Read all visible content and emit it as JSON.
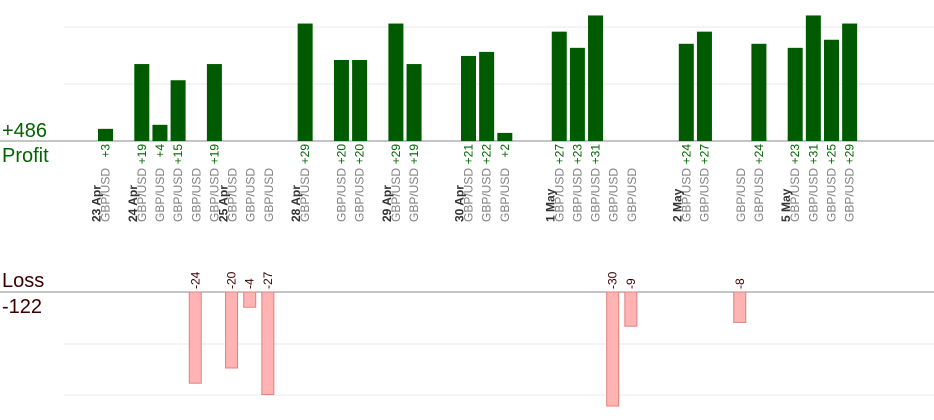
{
  "summary": {
    "profit_total": "+486",
    "profit_label": "Profit",
    "loss_label": "Loss",
    "loss_total": "-122"
  },
  "colors": {
    "profit_bar": "#005a00",
    "profit_text": "#006400",
    "loss_bar": "#ffb3b3",
    "loss_bar_border": "#e08080",
    "loss_text": "#3a0000",
    "grid": "#e8e8e8",
    "axis": "#888888"
  },
  "chart_data": {
    "type": "bar",
    "grid": true,
    "categories_label": "GBP/USD",
    "dates": [
      {
        "label": "23 Apr",
        "slot": 0
      },
      {
        "label": "24 Apr",
        "slot": 2
      },
      {
        "label": "25 Apr",
        "slot": 7
      },
      {
        "label": "28 Apr",
        "slot": 11
      },
      {
        "label": "29 Apr",
        "slot": 16
      },
      {
        "label": "30 Apr",
        "slot": 20
      },
      {
        "label": "1 May",
        "slot": 25
      },
      {
        "label": "2 May",
        "slot": 32
      },
      {
        "label": "5 May",
        "slot": 38
      }
    ],
    "profit_max": 42,
    "loss_max": 30,
    "trades": [
      {
        "slot": 0,
        "value": 3,
        "label": "+3"
      },
      {
        "slot": 2,
        "value": 19,
        "label": "+19"
      },
      {
        "slot": 3,
        "value": 4,
        "label": "+4"
      },
      {
        "slot": 4,
        "value": 15,
        "label": "+15"
      },
      {
        "slot": 5,
        "value": -24,
        "label": "-24"
      },
      {
        "slot": 6,
        "value": 19,
        "label": "+19"
      },
      {
        "slot": 7,
        "value": -20,
        "label": "-20"
      },
      {
        "slot": 8,
        "value": -4,
        "label": "-4"
      },
      {
        "slot": 9,
        "value": -27,
        "label": "-27"
      },
      {
        "slot": 11,
        "value": 29,
        "label": "+29"
      },
      {
        "slot": 13,
        "value": 20,
        "label": "+20"
      },
      {
        "slot": 14,
        "value": 20,
        "label": "+20"
      },
      {
        "slot": 16,
        "value": 29,
        "label": "+29"
      },
      {
        "slot": 17,
        "value": 19,
        "label": "+19"
      },
      {
        "slot": 20,
        "value": 21,
        "label": "+21"
      },
      {
        "slot": 21,
        "value": 22,
        "label": "+22"
      },
      {
        "slot": 22,
        "value": 2,
        "label": "+2"
      },
      {
        "slot": 25,
        "value": 27,
        "label": "+27"
      },
      {
        "slot": 26,
        "value": 23,
        "label": "+23"
      },
      {
        "slot": 27,
        "value": 31,
        "label": "+31"
      },
      {
        "slot": 28,
        "value": -30,
        "label": "-30"
      },
      {
        "slot": 29,
        "value": -9,
        "label": "-9"
      },
      {
        "slot": 32,
        "value": 24,
        "label": "+24"
      },
      {
        "slot": 33,
        "value": 27,
        "label": "+27"
      },
      {
        "slot": 35,
        "value": -8,
        "label": "-8"
      },
      {
        "slot": 36,
        "value": 24,
        "label": "+24"
      },
      {
        "slot": 38,
        "value": 23,
        "label": "+23"
      },
      {
        "slot": 39,
        "value": 31,
        "label": "+31"
      },
      {
        "slot": 40,
        "value": 25,
        "label": "+25"
      },
      {
        "slot": 41,
        "value": 29,
        "label": "+29"
      }
    ]
  }
}
